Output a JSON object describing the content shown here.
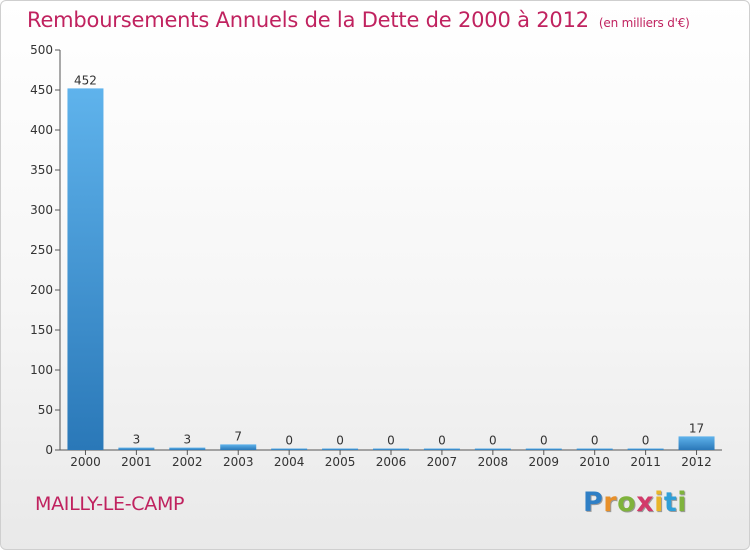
{
  "page": {
    "commune": "MAILLY-LE-CAMP",
    "logo_letters": [
      "P",
      "r",
      "o",
      "x",
      "i",
      "t",
      "i"
    ],
    "logo_colors": [
      "#2f7fc5",
      "#e8902a",
      "#7fb33c",
      "#d23a6a",
      "#e8b52a",
      "#2f9fd8",
      "#7fb33c"
    ]
  },
  "colors": {
    "title": "#c0225f",
    "bar_light": "#5fb3ec",
    "bar_dark": "#2a78b8",
    "axis": "#555555",
    "grid": "#d9d9d9"
  },
  "chart_data": {
    "type": "bar",
    "title": "Remboursements Annuels de la Dette de 2000 à 2012",
    "subtitle": "(en milliers d'€)",
    "xlabel": "",
    "ylabel": "",
    "ylim": [
      0,
      500
    ],
    "yticks": [
      0,
      50,
      100,
      150,
      200,
      250,
      300,
      350,
      400,
      450,
      500
    ],
    "grid": false,
    "categories": [
      "2000",
      "2001",
      "2002",
      "2003",
      "2004",
      "2005",
      "2006",
      "2007",
      "2008",
      "2009",
      "2010",
      "2011",
      "2012"
    ],
    "values": [
      452,
      3,
      3,
      7,
      0,
      0,
      0,
      0,
      0,
      0,
      0,
      0,
      17
    ]
  }
}
